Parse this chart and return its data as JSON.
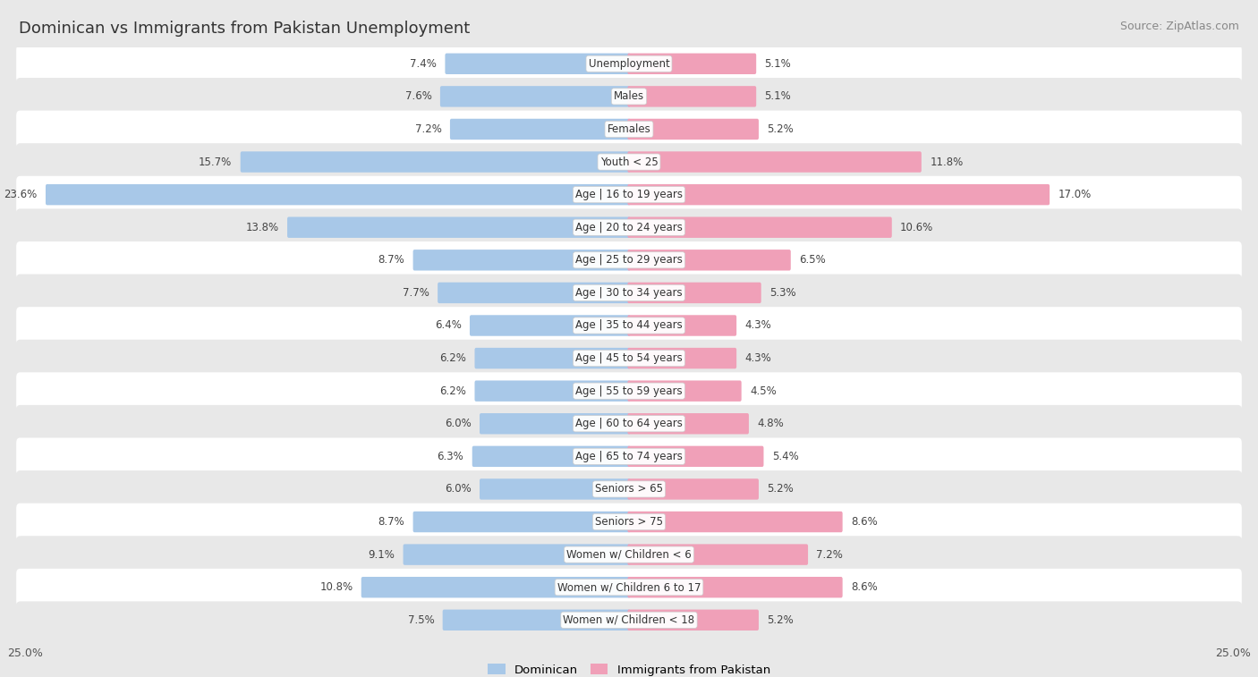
{
  "title": "Dominican vs Immigrants from Pakistan Unemployment",
  "source": "Source: ZipAtlas.com",
  "categories": [
    "Unemployment",
    "Males",
    "Females",
    "Youth < 25",
    "Age | 16 to 19 years",
    "Age | 20 to 24 years",
    "Age | 25 to 29 years",
    "Age | 30 to 34 years",
    "Age | 35 to 44 years",
    "Age | 45 to 54 years",
    "Age | 55 to 59 years",
    "Age | 60 to 64 years",
    "Age | 65 to 74 years",
    "Seniors > 65",
    "Seniors > 75",
    "Women w/ Children < 6",
    "Women w/ Children 6 to 17",
    "Women w/ Children < 18"
  ],
  "dominican": [
    7.4,
    7.6,
    7.2,
    15.7,
    23.6,
    13.8,
    8.7,
    7.7,
    6.4,
    6.2,
    6.2,
    6.0,
    6.3,
    6.0,
    8.7,
    9.1,
    10.8,
    7.5
  ],
  "pakistan": [
    5.1,
    5.1,
    5.2,
    11.8,
    17.0,
    10.6,
    6.5,
    5.3,
    4.3,
    4.3,
    4.5,
    4.8,
    5.4,
    5.2,
    8.6,
    7.2,
    8.6,
    5.2
  ],
  "dominican_color": "#a8c8e8",
  "pakistan_color": "#f0a0b8",
  "dominican_label": "Dominican",
  "pakistan_label": "Immigrants from Pakistan",
  "axis_max": 25.0,
  "fig_bg": "#e8e8e8",
  "row_even_bg": "#ffffff",
  "row_odd_bg": "#e8e8e8",
  "title_fontsize": 13,
  "source_fontsize": 9,
  "bar_label_fontsize": 8.5,
  "cat_label_fontsize": 8.5
}
